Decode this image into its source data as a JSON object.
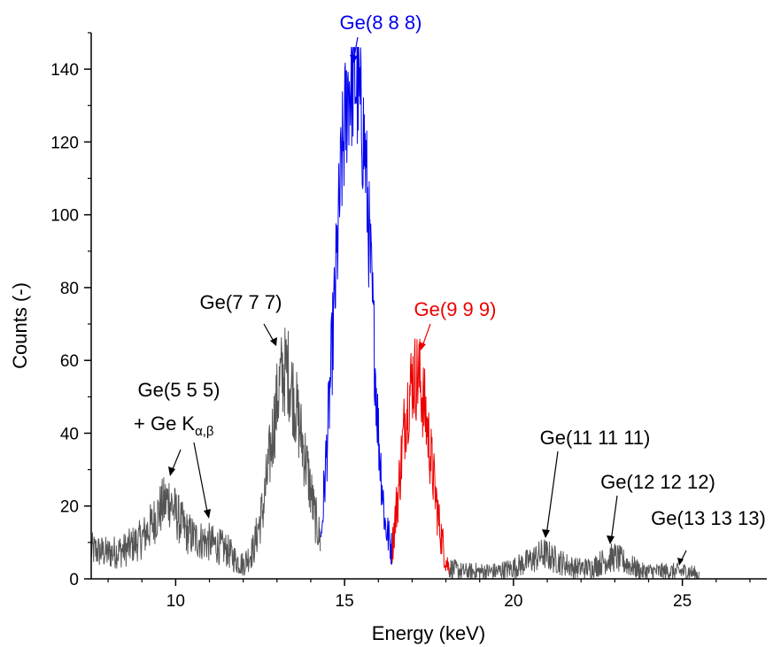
{
  "chart_data": {
    "type": "line",
    "xlabel": "Energy (keV)",
    "ylabel": "Counts (-)",
    "xlim": [
      7.5,
      27.5
    ],
    "ylim": [
      0,
      150
    ],
    "x_ticks": [
      10,
      15,
      20,
      25
    ],
    "y_ticks": [
      0,
      20,
      40,
      60,
      80,
      100,
      120,
      140
    ],
    "grid": false,
    "colors": {
      "base": "#555555",
      "ge888": "#0000ee",
      "ge999": "#ee0000",
      "axis": "#000000"
    },
    "series": [
      {
        "key": "base",
        "color": "#555555",
        "x": [
          7.5,
          8.0,
          8.5,
          9.0,
          9.3,
          9.6,
          9.8,
          10.0,
          10.3,
          10.6,
          11.0,
          11.5,
          11.8,
          12.0,
          12.3,
          12.6,
          12.9,
          13.1,
          13.3,
          13.5,
          13.7,
          13.9,
          14.1,
          14.3
        ],
        "y": [
          8,
          7,
          8,
          11,
          15,
          20,
          22,
          18,
          13,
          11,
          10,
          8,
          5,
          4,
          8,
          20,
          42,
          55,
          58,
          50,
          40,
          30,
          18,
          10
        ]
      },
      {
        "key": "ge888",
        "name": "Ge(8 8 8)",
        "color": "#0000ee",
        "x": [
          14.3,
          14.5,
          14.7,
          14.9,
          15.1,
          15.3,
          15.4,
          15.6,
          15.8,
          16.0,
          16.2,
          16.4
        ],
        "y": [
          10,
          40,
          75,
          112,
          135,
          138,
          134,
          118,
          80,
          40,
          15,
          8
        ]
      },
      {
        "key": "ge999",
        "name": "Ge(9 9 9)",
        "color": "#ee0000",
        "x": [
          16.4,
          16.6,
          16.8,
          17.0,
          17.2,
          17.4,
          17.6,
          17.8,
          18.0,
          18.1
        ],
        "y": [
          8,
          25,
          45,
          55,
          56,
          45,
          30,
          15,
          5,
          3
        ]
      },
      {
        "key": "tail",
        "color": "#555555",
        "x": [
          18.1,
          18.5,
          19.0,
          19.5,
          20.0,
          20.5,
          20.9,
          21.3,
          21.8,
          22.3,
          22.7,
          23.0,
          23.4,
          23.8,
          24.3,
          24.8,
          25.2,
          25.5
        ],
        "y": [
          3,
          2,
          2,
          2,
          3,
          5,
          7,
          5,
          3,
          3,
          5,
          6,
          4,
          2,
          2,
          2,
          2,
          1
        ]
      }
    ],
    "annotations": [
      {
        "text": "Ge(8 8 8)",
        "color": "#0000ee",
        "x": 15.3,
        "y": 146
      },
      {
        "text": "Ge(9 9 9)",
        "color": "#ee0000",
        "x": 17.2,
        "y": 60
      },
      {
        "text": "Ge(7 7 7)",
        "color": "#000000",
        "x": 13.2,
        "y": 65
      },
      {
        "text": "Ge(5 5 5)",
        "color": "#000000",
        "x": 9.75,
        "y": 28
      },
      {
        "text": "+ Ge K",
        "subscript": "α,β",
        "color": "#000000",
        "x": 11.0,
        "y": 17
      },
      {
        "text": "Ge(11 11 11)",
        "color": "#000000",
        "x": 21.1,
        "y": 10
      },
      {
        "text": "Ge(12 12 12)",
        "color": "#000000",
        "x": 23.0,
        "y": 9
      },
      {
        "text": "Ge(13 13 13)",
        "color": "#000000",
        "x": 24.9,
        "y": 4
      }
    ]
  }
}
